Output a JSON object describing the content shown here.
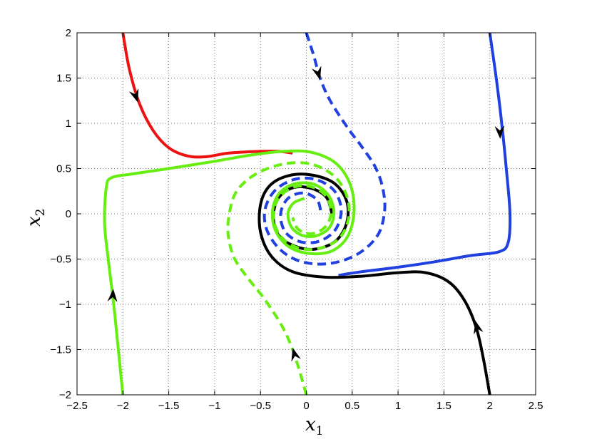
{
  "chart_data": {
    "type": "line",
    "title": "",
    "xlabel": "x",
    "xlabel_sub": "1",
    "ylabel": "x",
    "ylabel_sub": "2",
    "xlim": [
      -2.5,
      2.5
    ],
    "ylim": [
      -2,
      2
    ],
    "xticks": [
      -2.5,
      -2,
      -1.5,
      -1,
      -0.5,
      0,
      0.5,
      1,
      1.5,
      2,
      2.5
    ],
    "xtick_labels": [
      "−2.5",
      "−2",
      "−1.5",
      "−1",
      "−0.5",
      "0",
      "0.5",
      "1",
      "1.5",
      "2",
      "2.5"
    ],
    "yticks": [
      -2,
      -1.5,
      -1,
      -0.5,
      0,
      0.5,
      1,
      1.5,
      2
    ],
    "ytick_labels": [
      "−2",
      "−1.5",
      "−1",
      "−0.5",
      "0",
      "0.5",
      "1",
      "1.5",
      "2"
    ],
    "grid": true,
    "colors": {
      "red": "#ee1111",
      "blue": "#2040e0",
      "black": "#000000",
      "green": "#66ee11"
    },
    "series": [
      {
        "color": "#ee1111",
        "dash": "solid",
        "points": [
          [
            -2.0,
            2.0
          ],
          [
            -1.93,
            1.6
          ],
          [
            -1.82,
            1.22
          ],
          [
            -1.67,
            0.92
          ],
          [
            -1.5,
            0.73
          ],
          [
            -1.3,
            0.64
          ],
          [
            -1.1,
            0.63
          ],
          [
            -0.85,
            0.67
          ],
          [
            -0.5,
            0.69
          ],
          [
            -0.3,
            0.69
          ],
          [
            -0.15,
            0.67
          ]
        ],
        "arrow": {
          "at": [
            -1.86,
            1.3
          ],
          "dir": [
            0.32,
            -1.0
          ]
        }
      },
      {
        "color": "#2040e0",
        "dash": "solid",
        "points": [
          [
            2.0,
            2.0
          ],
          [
            2.07,
            1.5
          ],
          [
            2.13,
            1.0
          ],
          [
            2.18,
            0.5
          ],
          [
            2.22,
            0.0
          ],
          [
            2.2,
            -0.32
          ],
          [
            2.1,
            -0.42
          ],
          [
            1.8,
            -0.46
          ],
          [
            1.4,
            -0.53
          ],
          [
            1.0,
            -0.59
          ],
          [
            0.6,
            -0.64
          ],
          [
            0.35,
            -0.68
          ]
        ],
        "arrow": {
          "at": [
            2.11,
            0.9
          ],
          "dir": [
            0.05,
            -1.0
          ]
        }
      },
      {
        "color": "#000000",
        "dash": "solid",
        "points": [
          [
            2.0,
            -2.0
          ],
          [
            1.93,
            -1.6
          ],
          [
            1.85,
            -1.25
          ],
          [
            1.72,
            -0.95
          ],
          [
            1.55,
            -0.75
          ],
          [
            1.3,
            -0.65
          ],
          [
            1.0,
            -0.65
          ],
          [
            0.6,
            -0.69
          ],
          [
            0.2,
            -0.7
          ],
          [
            -0.15,
            -0.64
          ],
          [
            -0.38,
            -0.47
          ],
          [
            -0.5,
            -0.2
          ],
          [
            -0.5,
            0.1
          ],
          [
            -0.4,
            0.31
          ],
          [
            -0.2,
            0.42
          ],
          [
            0.05,
            0.43
          ],
          [
            0.3,
            0.34
          ],
          [
            0.44,
            0.14
          ],
          [
            0.44,
            -0.1
          ],
          [
            0.32,
            -0.3
          ],
          [
            0.1,
            -0.39
          ],
          [
            -0.12,
            -0.36
          ],
          [
            -0.3,
            -0.24
          ],
          [
            -0.36,
            -0.03
          ],
          [
            -0.3,
            0.18
          ],
          [
            -0.14,
            0.29
          ],
          [
            0.06,
            0.28
          ],
          [
            0.22,
            0.18
          ],
          [
            0.28,
            0.0
          ]
        ],
        "arrow": {
          "at": [
            1.86,
            -1.25
          ],
          "dir": [
            -0.25,
            1.0
          ]
        }
      },
      {
        "color": "#66ee11",
        "dash": "solid",
        "points": [
          [
            -2.0,
            -2.0
          ],
          [
            -2.05,
            -1.5
          ],
          [
            -2.1,
            -1.0
          ],
          [
            -2.16,
            -0.5
          ],
          [
            -2.2,
            -0.1
          ],
          [
            -2.18,
            0.3
          ],
          [
            -2.12,
            0.4
          ],
          [
            -1.9,
            0.44
          ],
          [
            -1.5,
            0.5
          ],
          [
            -1.0,
            0.58
          ],
          [
            -0.6,
            0.65
          ],
          [
            -0.25,
            0.69
          ],
          [
            0.05,
            0.68
          ],
          [
            0.32,
            0.56
          ],
          [
            0.48,
            0.32
          ],
          [
            0.52,
            0.02
          ],
          [
            0.45,
            -0.25
          ],
          [
            0.28,
            -0.41
          ],
          [
            0.05,
            -0.44
          ],
          [
            -0.18,
            -0.37
          ],
          [
            -0.33,
            -0.2
          ],
          [
            -0.37,
            0.02
          ],
          [
            -0.3,
            0.22
          ],
          [
            -0.13,
            0.33
          ],
          [
            0.07,
            0.33
          ],
          [
            0.23,
            0.22
          ],
          [
            0.3,
            0.04
          ],
          [
            0.26,
            -0.14
          ],
          [
            0.12,
            -0.24
          ],
          [
            -0.04,
            -0.24
          ],
          [
            -0.16,
            -0.15
          ],
          [
            -0.2,
            0.0
          ],
          [
            -0.14,
            0.12
          ],
          [
            -0.02,
            0.17
          ]
        ],
        "arrow": {
          "at": [
            -2.11,
            -0.9
          ],
          "dir": [
            0.06,
            1.0
          ]
        }
      },
      {
        "color": "#2040e0",
        "dash": "dashed",
        "points": [
          [
            0.0,
            2.0
          ],
          [
            0.08,
            1.75
          ],
          [
            0.15,
            1.5
          ],
          [
            0.26,
            1.25
          ],
          [
            0.45,
            0.95
          ],
          [
            0.62,
            0.72
          ],
          [
            0.76,
            0.5
          ],
          [
            0.84,
            0.25
          ],
          [
            0.85,
            0.0
          ],
          [
            0.77,
            -0.25
          ],
          [
            0.55,
            -0.45
          ],
          [
            0.25,
            -0.55
          ],
          [
            -0.05,
            -0.53
          ],
          [
            -0.28,
            -0.4
          ],
          [
            -0.43,
            -0.18
          ],
          [
            -0.45,
            0.05
          ],
          [
            -0.34,
            0.26
          ],
          [
            -0.13,
            0.38
          ],
          [
            0.1,
            0.38
          ],
          [
            0.3,
            0.26
          ],
          [
            0.38,
            0.05
          ],
          [
            0.32,
            -0.17
          ],
          [
            0.15,
            -0.3
          ],
          [
            -0.06,
            -0.31
          ],
          [
            -0.23,
            -0.2
          ],
          [
            -0.28,
            0.0
          ],
          [
            -0.2,
            0.17
          ],
          [
            -0.03,
            0.23
          ],
          [
            0.12,
            0.15
          ],
          [
            0.16,
            0.0
          ]
        ],
        "arrow": {
          "at": [
            0.13,
            1.55
          ],
          "dir": [
            0.28,
            -1.0
          ]
        }
      },
      {
        "color": "#66ee11",
        "dash": "dashed",
        "points": [
          [
            0.0,
            -2.0
          ],
          [
            -0.07,
            -1.75
          ],
          [
            -0.15,
            -1.5
          ],
          [
            -0.26,
            -1.25
          ],
          [
            -0.45,
            -0.95
          ],
          [
            -0.63,
            -0.72
          ],
          [
            -0.78,
            -0.5
          ],
          [
            -0.85,
            -0.25
          ],
          [
            -0.84,
            0.0
          ],
          [
            -0.76,
            0.25
          ],
          [
            -0.55,
            0.44
          ],
          [
            -0.25,
            0.55
          ],
          [
            0.05,
            0.55
          ],
          [
            0.3,
            0.42
          ],
          [
            0.44,
            0.2
          ],
          [
            0.46,
            -0.05
          ],
          [
            0.36,
            -0.27
          ],
          [
            0.15,
            -0.38
          ],
          [
            -0.08,
            -0.38
          ],
          [
            -0.27,
            -0.26
          ],
          [
            -0.36,
            -0.05
          ],
          [
            -0.31,
            0.16
          ],
          [
            -0.15,
            0.29
          ],
          [
            0.05,
            0.3
          ],
          [
            0.21,
            0.2
          ],
          [
            0.27,
            0.02
          ],
          [
            0.21,
            -0.14
          ],
          [
            0.06,
            -0.22
          ],
          [
            -0.09,
            -0.17
          ],
          [
            -0.15,
            -0.04
          ]
        ],
        "arrow": {
          "at": [
            -0.13,
            -1.55
          ],
          "dir": [
            -0.28,
            1.0
          ]
        }
      }
    ]
  }
}
